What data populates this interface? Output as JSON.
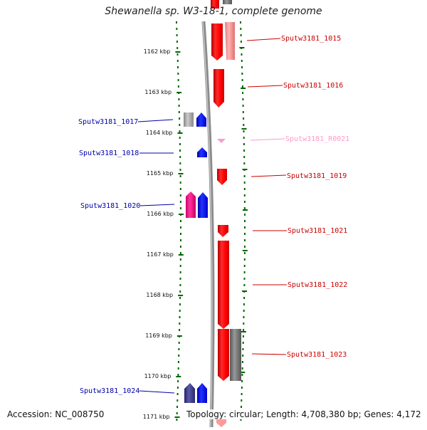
{
  "title": "Shewanella sp. W3-18-1, complete genome",
  "accession": "Accession: NC_008750",
  "topology": "Topology: circular; Length: 4,708,380 bp; Genes: 4,172",
  "ticks": [
    "1162 kbp",
    "1163 kbp",
    "1164 kbp",
    "1165 kbp",
    "1166 kbp",
    "1167 kbp",
    "1168 kbp",
    "1169 kbp",
    "1170 kbp",
    "1171 kbp"
  ],
  "colors": {
    "forward_gene": "#ff0000",
    "reverse_gene": "#0000ff",
    "rna_gene": "#ff99cc",
    "pseudo_gene": "#888888",
    "scale_dots": "#006600",
    "label_red": "#cc0000",
    "label_blue": "#0000aa"
  },
  "labels": {
    "right": [
      {
        "text": "Sputw3181_1015",
        "color": "#cc0000"
      },
      {
        "text": "Sputw3181_1016",
        "color": "#cc0000"
      },
      {
        "text": "Sputw3181_R0021",
        "color": "#ff99cc"
      },
      {
        "text": "Sputw3181_1019",
        "color": "#cc0000"
      },
      {
        "text": "Sputw3181_1021",
        "color": "#cc0000"
      },
      {
        "text": "Sputw3181_1022",
        "color": "#cc0000"
      },
      {
        "text": "Sputw3181_1023",
        "color": "#cc0000"
      }
    ],
    "left": [
      {
        "text": "Sputw3181_1017",
        "color": "#0000aa"
      },
      {
        "text": "Sputw3181_1018",
        "color": "#0000aa"
      },
      {
        "text": "Sputw3181_1020",
        "color": "#0000aa"
      },
      {
        "text": "Sputw3181_1024",
        "color": "#0000aa"
      }
    ]
  }
}
